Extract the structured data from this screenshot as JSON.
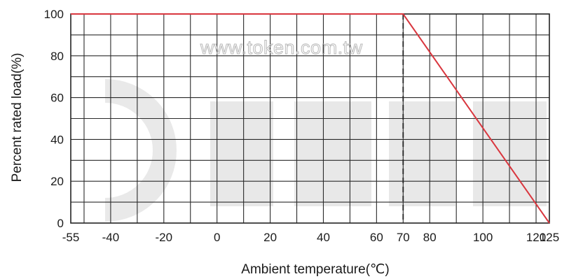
{
  "watermark_text": "www.token.com.tw",
  "chart_data": {
    "type": "line",
    "xlabel": "Ambient temperature(℃)",
    "ylabel": "Percent rated load(%)",
    "xlim": [
      -55,
      125
    ],
    "ylim": [
      0,
      100
    ],
    "x_ticks": [
      -55,
      -40,
      -20,
      0,
      20,
      40,
      60,
      70,
      80,
      100,
      120,
      125
    ],
    "y_ticks": [
      0,
      20,
      40,
      60,
      80,
      100
    ],
    "grid": true,
    "series": [
      {
        "color": "#d9363e",
        "points": [
          {
            "x": -55,
            "y": 100
          },
          {
            "x": 70,
            "y": 100
          },
          {
            "x": 125,
            "y": 0
          }
        ]
      }
    ],
    "reference_line": {
      "x": 70,
      "style": "dashed",
      "color": "#222222"
    }
  }
}
